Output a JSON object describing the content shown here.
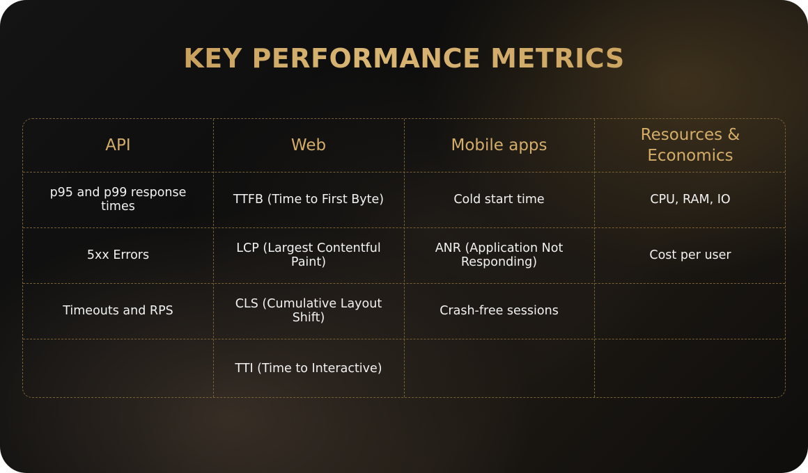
{
  "title": "KEY PERFORMANCE METRICS",
  "columns": [
    {
      "header": "API",
      "cells": [
        "p95 and p99 response times",
        "5xx Errors",
        "Timeouts and RPS",
        ""
      ]
    },
    {
      "header": "Web",
      "cells": [
        "TTFB (Time to First Byte)",
        "LCP (Largest Contentful Paint)",
        "CLS (Cumulative Layout Shift)",
        "TTI (Time to Interactive)"
      ]
    },
    {
      "header": "Mobile apps",
      "cells": [
        "Cold start time",
        "ANR (Application Not Responding)",
        "Crash-free sessions",
        ""
      ]
    },
    {
      "header": "Resources & Economics",
      "cells": [
        "CPU, RAM, IO",
        "Cost per user",
        "",
        ""
      ]
    }
  ],
  "colors": {
    "accent_gold": "#d4ad6a",
    "border_gold": "#7a6234",
    "text_light": "#f2f2f2",
    "background": "#0e0d0c"
  }
}
